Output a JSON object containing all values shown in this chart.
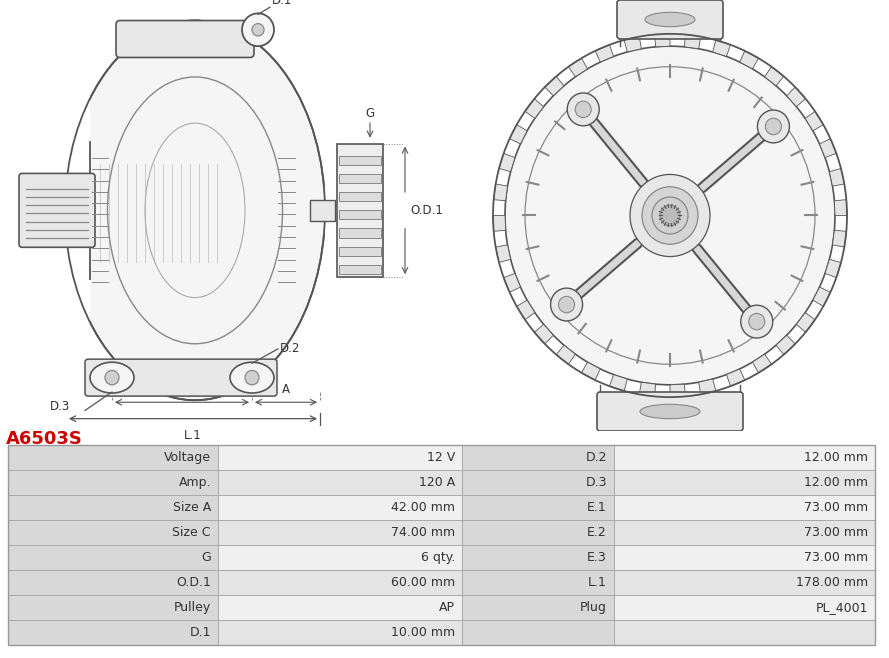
{
  "title": "A6503S",
  "title_color": "#cc0000",
  "background_color": "#ffffff",
  "table_rows": [
    [
      "Voltage",
      "12 V",
      "D.2",
      "12.00 mm"
    ],
    [
      "Amp.",
      "120 A",
      "D.3",
      "12.00 mm"
    ],
    [
      "Size A",
      "42.00 mm",
      "E.1",
      "73.00 mm"
    ],
    [
      "Size C",
      "74.00 mm",
      "E.2",
      "73.00 mm"
    ],
    [
      "G",
      "6 qty.",
      "E.3",
      "73.00 mm"
    ],
    [
      "O.D.1",
      "60.00 mm",
      "L.1",
      "178.00 mm"
    ],
    [
      "Pulley",
      "AP",
      "Plug",
      "PL_4001"
    ],
    [
      "D.1",
      "10.00 mm",
      "",
      ""
    ]
  ],
  "line_color": "#555555",
  "line_color2": "#888888",
  "fill_light": "#f5f5f5",
  "fill_mid": "#e8e8e8",
  "fill_dark": "#d0d0d0",
  "header_bg": "#d8d8d8",
  "row_bg1": "#f0f0f0",
  "row_bg2": "#e4e4e4",
  "border_color": "#aaaaaa",
  "text_color": "#333333"
}
